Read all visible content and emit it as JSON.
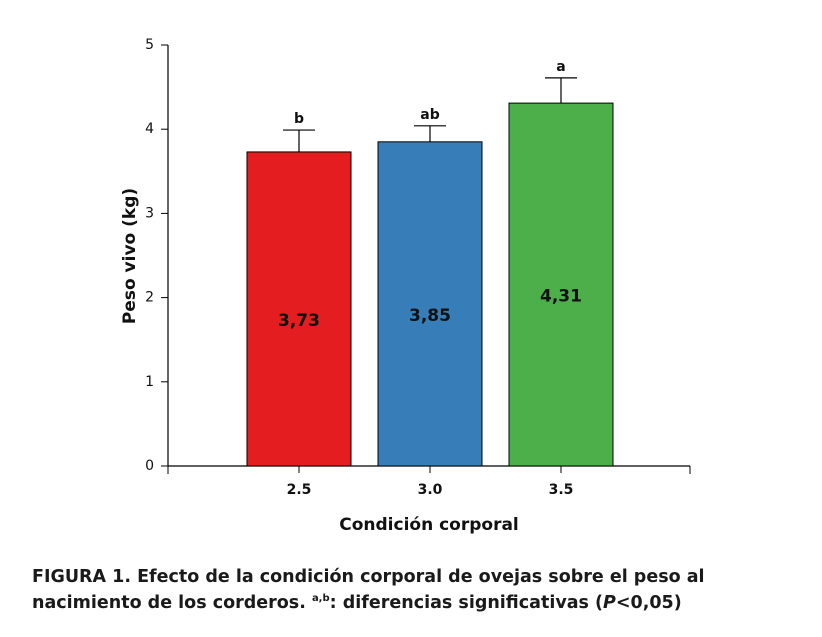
{
  "chart_data": {
    "type": "bar",
    "y_label": "Peso vivo (kg)",
    "x_label": "Condición corporal",
    "categories": [
      "2.5",
      "3.0",
      "3.5"
    ],
    "values": [
      3.73,
      3.85,
      4.31
    ],
    "value_labels": [
      "3,73",
      "3,85",
      "4,31"
    ],
    "errors": [
      0.26,
      0.19,
      0.3
    ],
    "sig_labels": [
      "b",
      "ab",
      "a"
    ],
    "colors": [
      "#e41e20",
      "#377eb8",
      "#4daf4a"
    ],
    "ylim": [
      0,
      5
    ],
    "yticks": [
      0,
      1,
      2,
      3,
      4,
      5
    ],
    "caption": {
      "main": "FIGURA 1. Efecto de la condición corporal de ovejas sobre el peso al nacimiento de los corderos. ",
      "sup": "a,b",
      "mid": ": diferencias significativas (",
      "italic": "P",
      "end": "<0,05)"
    }
  }
}
